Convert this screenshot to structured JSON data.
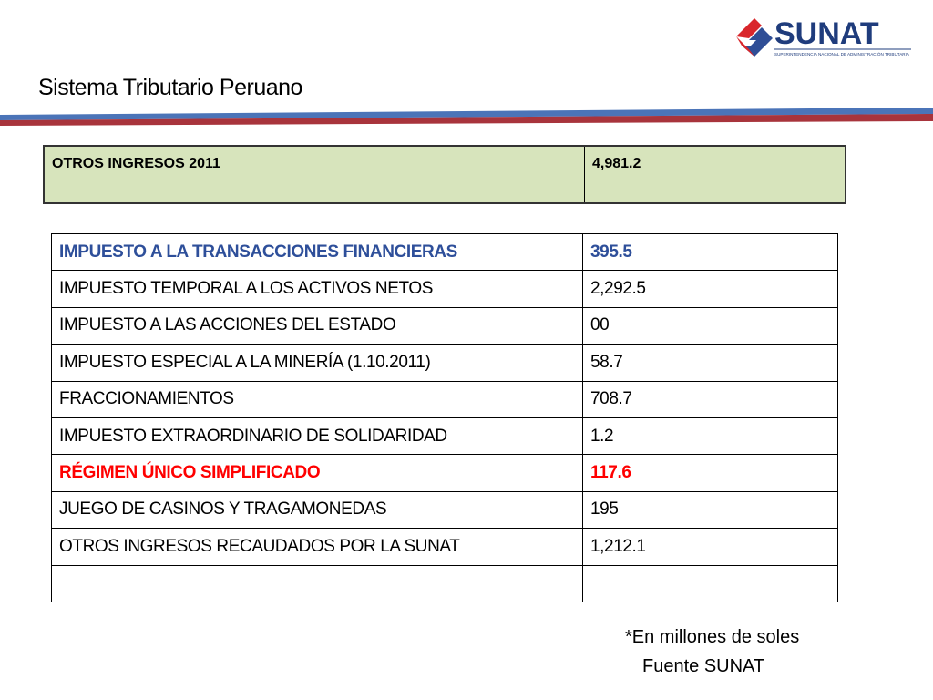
{
  "header": {
    "title": "Sistema Tributario Peruano",
    "logo": "SUNAT",
    "logo_subtitle": "SUPERINTENDENCIA NACIONAL DE ADMINISTRACIÓN TRIBUTARIA"
  },
  "summary": {
    "rows": [
      [
        "OTROS INGRESOS 2011",
        "4,981.2"
      ]
    ]
  },
  "table": {
    "rows": [
      [
        "IMPUESTO A LA TRANSACCIONES FINANCIERAS",
        "395.5"
      ],
      [
        "IMPUESTO TEMPORAL A LOS ACTIVOS NETOS",
        "2,292.5"
      ],
      [
        "IMPUESTO A LAS ACCIONES DEL ESTADO",
        "00"
      ],
      [
        "IMPUESTO ESPECIAL A LA MINERÍA (1.10.2011)",
        "58.7"
      ],
      [
        "FRACCIONAMIENTOS",
        "708.7"
      ],
      [
        "IMPUESTO EXTRAORDINARIO DE SOLIDARIDAD",
        "1.2"
      ],
      [
        "RÉGIMEN ÚNICO SIMPLIFICADO",
        "117.6"
      ],
      [
        "JUEGO DE CASINOS Y TRAGAMONEDAS",
        "195"
      ],
      [
        "OTROS INGRESOS RECAUDADOS POR LA SUNAT",
        "1,212.1"
      ]
    ]
  },
  "footnotes": [
    "*En millones de soles",
    "Fuente SUNAT"
  ]
}
